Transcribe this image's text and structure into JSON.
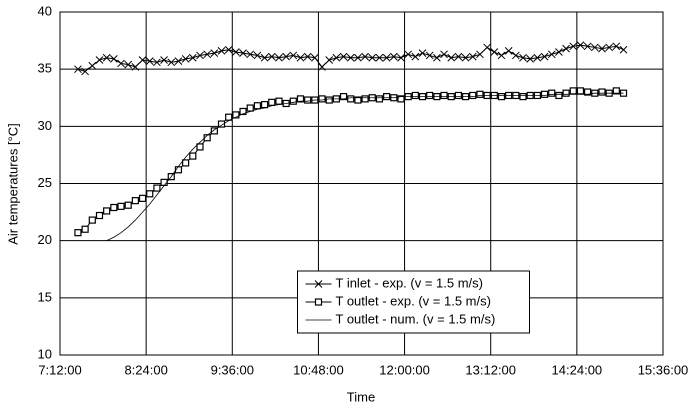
{
  "chart_data": {
    "type": "line",
    "x_label": "Time",
    "y_label": "Air temperatures [°C]",
    "xlim": [
      432,
      936
    ],
    "xticks": [
      {
        "value": 432,
        "label": "7:12:00"
      },
      {
        "value": 504,
        "label": "8:24:00"
      },
      {
        "value": 576,
        "label": "9:36:00"
      },
      {
        "value": 648,
        "label": "10:48:00"
      },
      {
        "value": 720,
        "label": "12:00:00"
      },
      {
        "value": 792,
        "label": "13:12:00"
      },
      {
        "value": 864,
        "label": "14:24:00"
      },
      {
        "value": 936,
        "label": "15:36:00"
      }
    ],
    "ylim": [
      10,
      40
    ],
    "yticks": [
      10,
      15,
      20,
      25,
      30,
      35,
      40
    ],
    "grid": true,
    "legend_position": "lower center",
    "x": [
      447,
      453,
      459,
      465,
      471,
      477,
      483,
      489,
      495,
      501,
      507,
      513,
      519,
      525,
      531,
      537,
      543,
      549,
      555,
      561,
      567,
      573,
      579,
      585,
      591,
      597,
      603,
      609,
      615,
      621,
      627,
      633,
      639,
      645,
      651,
      657,
      663,
      669,
      675,
      681,
      687,
      693,
      699,
      705,
      711,
      717,
      723,
      729,
      735,
      741,
      747,
      753,
      759,
      765,
      771,
      777,
      783,
      789,
      795,
      801,
      807,
      813,
      819,
      825,
      831,
      837,
      843,
      849,
      855,
      861,
      867,
      873,
      879,
      885,
      891,
      897,
      903
    ],
    "series": [
      {
        "name": "T inlet - exp. (v = 1.5 m/s)",
        "color": "#000000",
        "marker": "x",
        "values": [
          35.0,
          34.8,
          35.3,
          35.8,
          36.0,
          35.9,
          35.5,
          35.4,
          35.2,
          35.8,
          35.7,
          35.6,
          35.8,
          35.6,
          35.7,
          35.9,
          36.0,
          36.2,
          36.3,
          36.4,
          36.6,
          36.7,
          36.5,
          36.4,
          36.3,
          36.2,
          36.0,
          36.1,
          36.0,
          36.1,
          36.2,
          36.0,
          36.1,
          36.0,
          35.2,
          35.8,
          36.0,
          36.1,
          36.0,
          36.0,
          36.1,
          36.0,
          36.0,
          36.0,
          36.1,
          36.0,
          36.3,
          36.1,
          36.4,
          36.2,
          36.0,
          36.3,
          36.0,
          36.1,
          36.0,
          36.1,
          36.3,
          36.9,
          36.5,
          36.2,
          36.6,
          36.2,
          36.0,
          35.9,
          36.0,
          36.1,
          36.3,
          36.5,
          36.8,
          37.0,
          37.1,
          37.0,
          36.9,
          36.8,
          36.9,
          37.0,
          36.7
        ]
      },
      {
        "name": "T outlet - exp. (v = 1.5 m/s)",
        "color": "#000000",
        "marker": "square",
        "values": [
          20.7,
          21.0,
          21.8,
          22.2,
          22.6,
          22.9,
          23.0,
          23.1,
          23.5,
          23.7,
          24.1,
          24.6,
          25.1,
          25.6,
          26.2,
          26.8,
          27.4,
          28.2,
          29.0,
          29.6,
          30.2,
          30.8,
          31.0,
          31.3,
          31.6,
          31.8,
          31.9,
          32.1,
          32.2,
          32.0,
          32.2,
          32.4,
          32.3,
          32.3,
          32.4,
          32.3,
          32.4,
          32.6,
          32.4,
          32.3,
          32.4,
          32.5,
          32.4,
          32.6,
          32.5,
          32.4,
          32.6,
          32.7,
          32.6,
          32.7,
          32.6,
          32.7,
          32.6,
          32.7,
          32.6,
          32.7,
          32.8,
          32.7,
          32.7,
          32.6,
          32.7,
          32.7,
          32.6,
          32.7,
          32.7,
          32.8,
          32.9,
          32.7,
          32.9,
          33.1,
          33.1,
          33.0,
          32.9,
          33.0,
          32.9,
          33.1,
          32.9
        ]
      },
      {
        "name": "T outlet - num. (v = 1.5 m/s)",
        "color": "#000000",
        "marker": "none",
        "values": [
          null,
          null,
          null,
          null,
          20.0,
          20.3,
          20.7,
          21.2,
          21.8,
          22.5,
          23.2,
          24.0,
          24.8,
          25.6,
          26.5,
          27.3,
          28.0,
          28.6,
          29.2,
          29.7,
          30.1,
          30.5,
          30.8,
          31.1,
          31.3,
          31.5,
          31.6,
          31.8,
          31.9,
          32.0,
          32.1,
          32.2,
          32.2,
          32.3,
          32.3,
          32.4,
          32.4,
          32.4,
          32.5,
          32.5,
          32.5,
          32.5,
          32.5,
          32.5,
          32.5,
          32.6,
          32.6,
          32.6,
          32.6,
          32.6,
          32.6,
          32.6,
          32.6,
          32.6,
          32.6,
          32.6,
          32.7,
          32.7,
          32.7,
          32.7,
          32.7,
          32.7,
          32.7,
          32.7,
          32.7,
          32.7,
          32.8,
          32.8,
          32.8,
          32.8,
          32.8,
          32.8,
          32.9,
          32.9,
          32.9,
          32.9,
          32.9
        ]
      }
    ]
  }
}
